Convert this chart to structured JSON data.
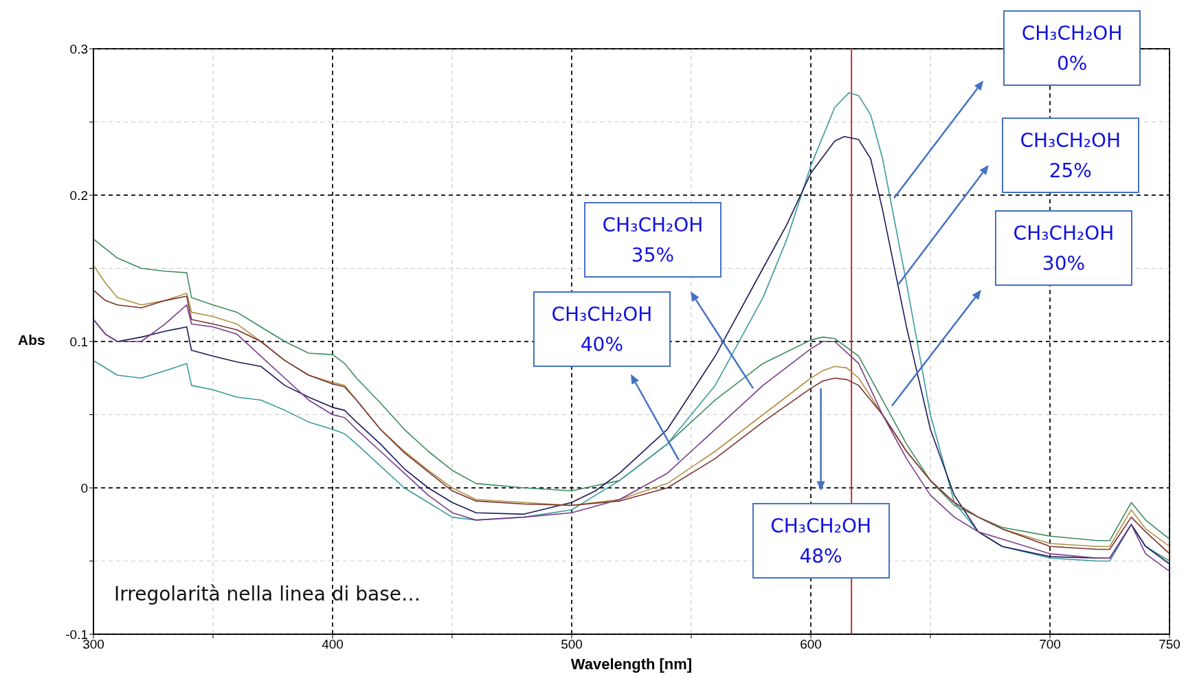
{
  "chart_data": {
    "type": "line",
    "xlabel": "Wavelength [nm]",
    "ylabel": "Abs",
    "xlim": [
      300,
      750
    ],
    "ylim": [
      -0.1,
      0.3
    ],
    "xticks": [
      300,
      {
        "value": 350,
        "label": null
      },
      400,
      {
        "value": 450,
        "label": null
      },
      500,
      {
        "value": 550,
        "label": null
      },
      600,
      {
        "value": 650,
        "label": null
      },
      700,
      750
    ],
    "yticks": [
      -0.1,
      {
        "value": -0.05,
        "label": null
      },
      0,
      {
        "value": 0.05,
        "label": null
      },
      0.1,
      {
        "value": 0.15,
        "label": null
      },
      0.2,
      {
        "value": 0.25,
        "label": null
      },
      0.3
    ],
    "grid": true,
    "marker": "none",
    "line_style": "solid",
    "ref_lines": [
      {
        "axis": "x",
        "value": 617,
        "color": "#c03030"
      }
    ],
    "annotations": [
      "CH₃CH₂OH 0%",
      "CH₃CH₂OH 25%",
      "CH₃CH₂OH 30%",
      "CH₃CH₂OH 35%",
      "CH₃CH₂OH 40%",
      "CH₃CH₂OH 48%",
      "Irregolarità nella linea di base…"
    ],
    "series": [
      {
        "color": "#3c8c5c",
        "x": [
          300,
          310,
          320,
          330,
          339,
          341,
          350,
          360,
          370,
          380,
          390,
          400,
          405,
          410,
          420,
          430,
          440,
          450,
          460,
          480,
          500,
          520,
          540,
          560,
          580,
          600,
          605,
          610,
          620,
          630,
          640,
          650,
          660,
          670,
          680,
          700,
          720,
          725,
          734,
          740,
          750
        ],
        "values": [
          0.17,
          0.157,
          0.15,
          0.148,
          0.147,
          0.13,
          0.125,
          0.12,
          0.11,
          0.1,
          0.092,
          0.091,
          0.085,
          0.075,
          0.058,
          0.04,
          0.025,
          0.012,
          0.003,
          0.0,
          -0.002,
          0.005,
          0.03,
          0.06,
          0.085,
          0.101,
          0.103,
          0.102,
          0.09,
          0.06,
          0.03,
          0.005,
          -0.012,
          -0.02,
          -0.027,
          -0.033,
          -0.036,
          -0.036,
          -0.01,
          -0.022,
          -0.035
        ]
      },
      {
        "color": "#3a9a9a",
        "x": [
          300,
          310,
          320,
          330,
          339,
          341,
          350,
          360,
          370,
          380,
          390,
          400,
          405,
          410,
          420,
          430,
          440,
          450,
          460,
          480,
          500,
          510,
          520,
          540,
          560,
          580,
          590,
          600,
          610,
          616,
          620,
          625,
          630,
          640,
          650,
          660,
          670,
          680,
          700,
          720,
          725,
          734,
          740,
          750
        ],
        "values": [
          0.087,
          0.077,
          0.075,
          0.08,
          0.085,
          0.07,
          0.067,
          0.062,
          0.06,
          0.053,
          0.045,
          0.04,
          0.037,
          0.03,
          0.015,
          0.0,
          -0.01,
          -0.02,
          -0.022,
          -0.02,
          -0.015,
          -0.005,
          0.005,
          0.03,
          0.07,
          0.13,
          0.17,
          0.22,
          0.26,
          0.27,
          0.268,
          0.255,
          0.225,
          0.14,
          0.05,
          -0.01,
          -0.03,
          -0.04,
          -0.048,
          -0.05,
          -0.05,
          -0.025,
          -0.04,
          -0.05
        ]
      },
      {
        "color": "#1a1a5a",
        "x": [
          300,
          305,
          310,
          320,
          330,
          339,
          341,
          350,
          360,
          370,
          380,
          390,
          400,
          405,
          410,
          420,
          430,
          440,
          450,
          460,
          480,
          500,
          510,
          520,
          540,
          560,
          580,
          590,
          600,
          610,
          614,
          620,
          625,
          630,
          640,
          650,
          660,
          670,
          680,
          700,
          720,
          725,
          734,
          740,
          750
        ],
        "values": [
          0.115,
          0.105,
          0.1,
          0.103,
          0.107,
          0.11,
          0.094,
          0.09,
          0.086,
          0.083,
          0.07,
          0.062,
          0.055,
          0.053,
          0.045,
          0.03,
          0.013,
          0.0,
          -0.01,
          -0.017,
          -0.018,
          -0.01,
          -0.002,
          0.01,
          0.04,
          0.09,
          0.15,
          0.18,
          0.215,
          0.237,
          0.24,
          0.238,
          0.225,
          0.19,
          0.11,
          0.04,
          -0.005,
          -0.03,
          -0.04,
          -0.047,
          -0.048,
          -0.048,
          -0.025,
          -0.04,
          -0.052
        ]
      },
      {
        "color": "#b09040",
        "x": [
          300,
          305,
          310,
          320,
          330,
          339,
          341,
          350,
          360,
          370,
          380,
          390,
          400,
          405,
          410,
          420,
          430,
          440,
          450,
          460,
          480,
          500,
          520,
          540,
          560,
          580,
          600,
          605,
          610,
          615,
          620,
          630,
          640,
          650,
          660,
          670,
          680,
          700,
          720,
          725,
          734,
          740,
          750
        ],
        "values": [
          0.152,
          0.14,
          0.13,
          0.125,
          0.128,
          0.133,
          0.12,
          0.117,
          0.112,
          0.1,
          0.087,
          0.077,
          0.072,
          0.07,
          0.06,
          0.04,
          0.025,
          0.012,
          0.0,
          -0.008,
          -0.01,
          -0.012,
          -0.008,
          0.003,
          0.025,
          0.05,
          0.075,
          0.08,
          0.083,
          0.082,
          0.075,
          0.05,
          0.025,
          0.005,
          -0.01,
          -0.02,
          -0.028,
          -0.038,
          -0.04,
          -0.04,
          -0.015,
          -0.028,
          -0.04
        ]
      },
      {
        "color": "#7a3030",
        "x": [
          300,
          305,
          310,
          320,
          330,
          339,
          341,
          350,
          360,
          370,
          380,
          390,
          400,
          405,
          410,
          420,
          430,
          440,
          450,
          460,
          480,
          500,
          520,
          540,
          560,
          580,
          600,
          605,
          610,
          615,
          620,
          630,
          640,
          650,
          660,
          670,
          680,
          700,
          720,
          725,
          734,
          740,
          750
        ],
        "values": [
          0.135,
          0.128,
          0.125,
          0.123,
          0.128,
          0.131,
          0.115,
          0.112,
          0.108,
          0.1,
          0.087,
          0.077,
          0.071,
          0.069,
          0.06,
          0.04,
          0.024,
          0.011,
          -0.002,
          -0.009,
          -0.011,
          -0.012,
          -0.009,
          0.0,
          0.02,
          0.045,
          0.068,
          0.073,
          0.075,
          0.074,
          0.07,
          0.05,
          0.025,
          0.005,
          -0.01,
          -0.02,
          -0.028,
          -0.04,
          -0.042,
          -0.042,
          -0.02,
          -0.03,
          -0.045
        ]
      },
      {
        "color": "#7a3a8a",
        "x": [
          300,
          305,
          310,
          320,
          330,
          339,
          341,
          350,
          360,
          370,
          380,
          390,
          400,
          405,
          410,
          420,
          430,
          440,
          450,
          460,
          480,
          500,
          520,
          540,
          560,
          580,
          600,
          605,
          610,
          620,
          630,
          640,
          650,
          660,
          670,
          680,
          700,
          720,
          725,
          734,
          740,
          750
        ],
        "values": [
          0.115,
          0.105,
          0.1,
          0.1,
          0.112,
          0.125,
          0.112,
          0.11,
          0.105,
          0.09,
          0.075,
          0.06,
          0.05,
          0.048,
          0.04,
          0.025,
          0.01,
          -0.005,
          -0.017,
          -0.022,
          -0.02,
          -0.017,
          -0.008,
          0.01,
          0.04,
          0.07,
          0.095,
          0.1,
          0.1,
          0.085,
          0.05,
          0.02,
          -0.005,
          -0.02,
          -0.03,
          -0.035,
          -0.045,
          -0.048,
          -0.048,
          -0.025,
          -0.045,
          -0.057
        ]
      }
    ]
  }
}
